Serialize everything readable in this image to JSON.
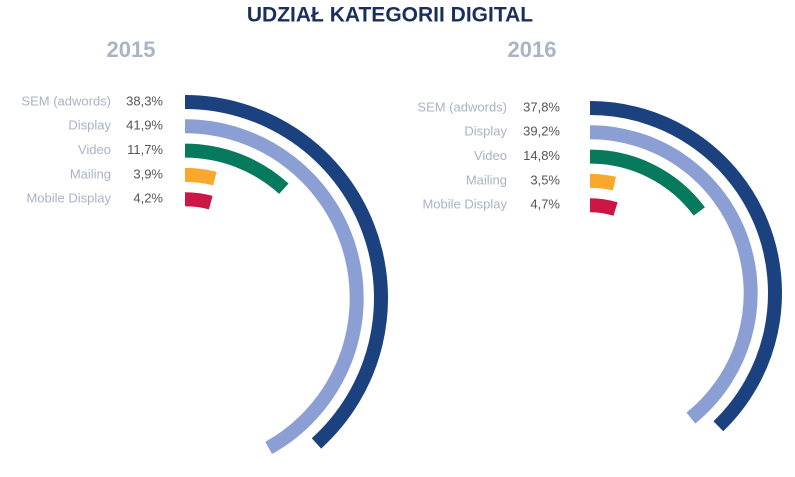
{
  "title": "UDZIAŁ KATEGORII DIGITAL",
  "chart_data": [
    {
      "type": "radial_bar",
      "title": "2015",
      "categories": [
        "SEM (adwords)",
        "Display",
        "Video",
        "Mailing",
        "Mobile Display"
      ],
      "values": [
        38.3,
        41.9,
        11.7,
        3.9,
        4.2
      ],
      "value_labels": [
        "38,3%",
        "41,9%",
        "11,7%",
        "3,9%",
        "4,2%"
      ],
      "colors": [
        "#1b417e",
        "#8c9fd4",
        "#07795d",
        "#f8a82d",
        "#cc1746"
      ]
    },
    {
      "type": "radial_bar",
      "title": "2016",
      "categories": [
        "SEM (adwords)",
        "Display",
        "Video",
        "Mailing",
        "Mobile Display"
      ],
      "values": [
        37.8,
        39.2,
        14.8,
        3.5,
        4.7
      ],
      "value_labels": [
        "37,8%",
        "39,2%",
        "14,8%",
        "3,5%",
        "4,7%"
      ],
      "colors": [
        "#1b417e",
        "#8c9fd4",
        "#07795d",
        "#f8a82d",
        "#cc1746"
      ]
    }
  ]
}
